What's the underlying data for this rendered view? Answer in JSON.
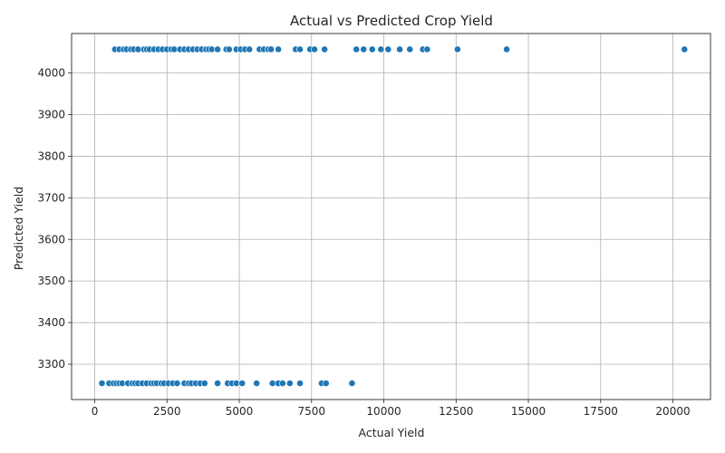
{
  "chart_data": {
    "type": "scatter",
    "title": "Actual vs Predicted Crop Yield",
    "xlabel": "Actual Yield",
    "ylabel": "Predicted Yield",
    "xlim": [
      -800,
      21300
    ],
    "ylim": [
      3215,
      4095
    ],
    "xticks": [
      {
        "value": 0,
        "label": "0"
      },
      {
        "value": 2500,
        "label": "2500"
      },
      {
        "value": 5000,
        "label": "5000"
      },
      {
        "value": 7500,
        "label": "7500"
      },
      {
        "value": 10000,
        "label": "10000"
      },
      {
        "value": 12500,
        "label": "12500"
      },
      {
        "value": 15000,
        "label": "15000"
      },
      {
        "value": 17500,
        "label": "17500"
      },
      {
        "value": 20000,
        "label": "20000"
      }
    ],
    "yticks": [
      {
        "value": 3300,
        "label": "3300"
      },
      {
        "value": 3400,
        "label": "3400"
      },
      {
        "value": 3500,
        "label": "3500"
      },
      {
        "value": 3600,
        "label": "3600"
      },
      {
        "value": 3700,
        "label": "3700"
      },
      {
        "value": 3800,
        "label": "3800"
      },
      {
        "value": 3900,
        "label": "3900"
      },
      {
        "value": 4000,
        "label": "4000"
      }
    ],
    "grid": true,
    "marker_color": "#1f77b4",
    "series": [
      {
        "points": [
          [
            700,
            4057
          ],
          [
            850,
            4057
          ],
          [
            1000,
            4057
          ],
          [
            1100,
            4057
          ],
          [
            1250,
            4057
          ],
          [
            1350,
            4057
          ],
          [
            1500,
            4057
          ],
          [
            1700,
            4057
          ],
          [
            1800,
            4057
          ],
          [
            1900,
            4057
          ],
          [
            2050,
            4057
          ],
          [
            2200,
            4057
          ],
          [
            2350,
            4057
          ],
          [
            2500,
            4057
          ],
          [
            2650,
            4057
          ],
          [
            2750,
            4057
          ],
          [
            2950,
            4057
          ],
          [
            3100,
            4057
          ],
          [
            3250,
            4057
          ],
          [
            3400,
            4057
          ],
          [
            3550,
            4057
          ],
          [
            3700,
            4057
          ],
          [
            3850,
            4057
          ],
          [
            3950,
            4057
          ],
          [
            4050,
            4057
          ],
          [
            4250,
            4057
          ],
          [
            4550,
            4057
          ],
          [
            4650,
            4057
          ],
          [
            4900,
            4057
          ],
          [
            5050,
            4057
          ],
          [
            5200,
            4057
          ],
          [
            5350,
            4057
          ],
          [
            5700,
            4057
          ],
          [
            5850,
            4057
          ],
          [
            6000,
            4057
          ],
          [
            6100,
            4057
          ],
          [
            6350,
            4057
          ],
          [
            6950,
            4057
          ],
          [
            7100,
            4057
          ],
          [
            7450,
            4057
          ],
          [
            7600,
            4057
          ],
          [
            7950,
            4057
          ],
          [
            9050,
            4057
          ],
          [
            9300,
            4057
          ],
          [
            9600,
            4057
          ],
          [
            9900,
            4057
          ],
          [
            10150,
            4057
          ],
          [
            10550,
            4057
          ],
          [
            10900,
            4057
          ],
          [
            11350,
            4057
          ],
          [
            11500,
            4057
          ],
          [
            12550,
            4057
          ],
          [
            14250,
            4057
          ],
          [
            20400,
            4057
          ],
          [
            250,
            3254
          ],
          [
            500,
            3254
          ],
          [
            650,
            3254
          ],
          [
            750,
            3254
          ],
          [
            850,
            3254
          ],
          [
            950,
            3254
          ],
          [
            1150,
            3254
          ],
          [
            1300,
            3254
          ],
          [
            1400,
            3254
          ],
          [
            1500,
            3254
          ],
          [
            1650,
            3254
          ],
          [
            1800,
            3254
          ],
          [
            1950,
            3254
          ],
          [
            2050,
            3254
          ],
          [
            2150,
            3254
          ],
          [
            2300,
            3254
          ],
          [
            2400,
            3254
          ],
          [
            2550,
            3254
          ],
          [
            2700,
            3254
          ],
          [
            2850,
            3254
          ],
          [
            3100,
            3254
          ],
          [
            3250,
            3254
          ],
          [
            3350,
            3254
          ],
          [
            3500,
            3254
          ],
          [
            3650,
            3254
          ],
          [
            3800,
            3254
          ],
          [
            4250,
            3254
          ],
          [
            4600,
            3254
          ],
          [
            4750,
            3254
          ],
          [
            4900,
            3254
          ],
          [
            5100,
            3254
          ],
          [
            5600,
            3254
          ],
          [
            6150,
            3254
          ],
          [
            6350,
            3254
          ],
          [
            6500,
            3254
          ],
          [
            6750,
            3254
          ],
          [
            7100,
            3254
          ],
          [
            7850,
            3254
          ],
          [
            8000,
            3254
          ],
          [
            8900,
            3254
          ]
        ]
      }
    ]
  }
}
